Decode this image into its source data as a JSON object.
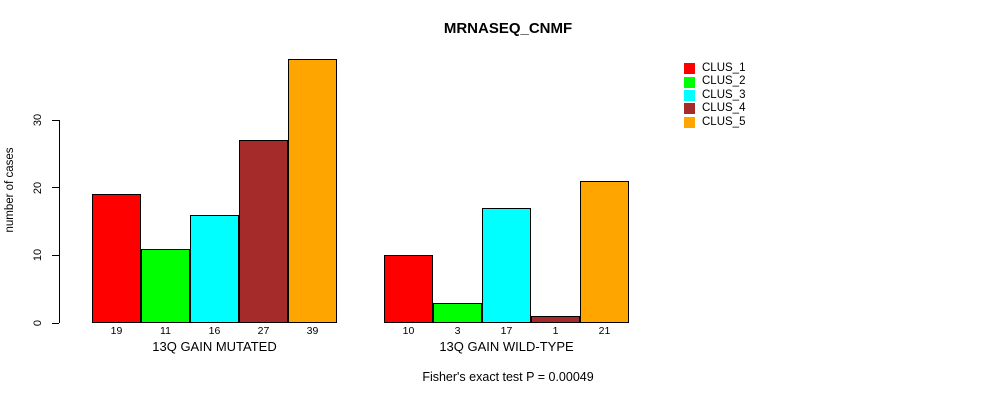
{
  "chart_data": {
    "type": "bar",
    "title": "MRNASEQ_CNMF",
    "ylabel": "number of cases",
    "xlabel": "",
    "caption": "Fisher's exact test P = 0.00049",
    "ylim": [
      0,
      40
    ],
    "yticks": [
      0,
      10,
      20,
      30
    ],
    "grid": false,
    "legend_position": "top-right",
    "series": [
      {
        "name": "CLUS_1",
        "color": "#FF0000"
      },
      {
        "name": "CLUS_2",
        "color": "#00FF00"
      },
      {
        "name": "CLUS_3",
        "color": "#00FFFF"
      },
      {
        "name": "CLUS_4",
        "color": "#A52A2A"
      },
      {
        "name": "CLUS_5",
        "color": "#FFA500"
      }
    ],
    "groups": [
      {
        "label": "13Q GAIN MUTATED",
        "values": [
          19,
          11,
          16,
          27,
          39
        ]
      },
      {
        "label": "13Q GAIN WILD-TYPE",
        "values": [
          10,
          3,
          17,
          1,
          21
        ]
      }
    ],
    "show_values_under_bars": true
  }
}
